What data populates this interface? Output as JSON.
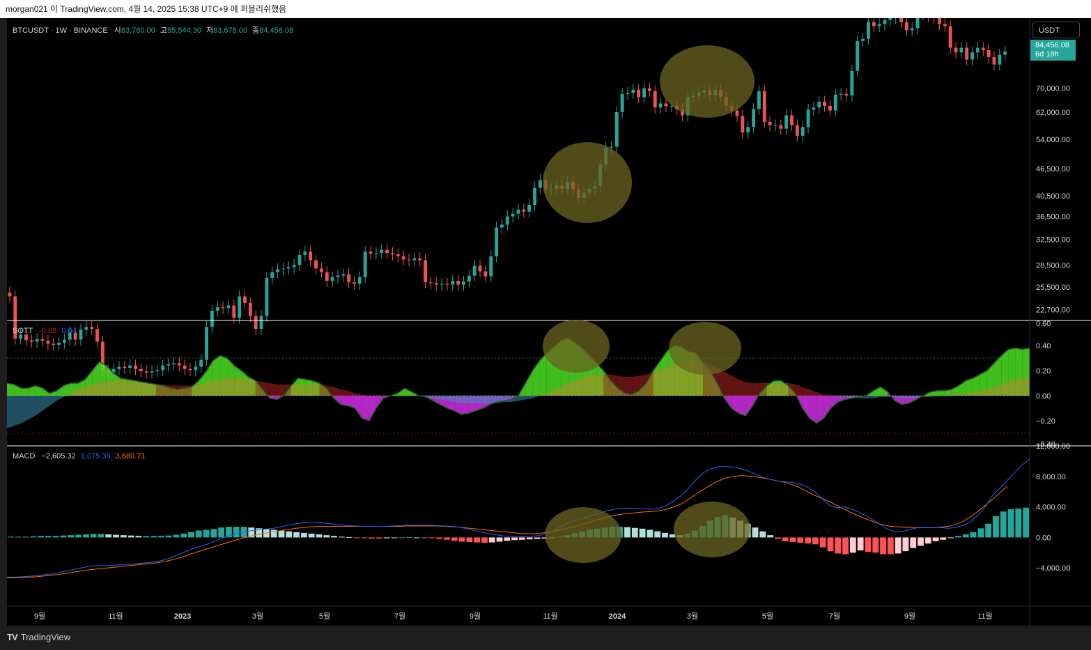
{
  "header": {
    "publish_info": "morgan021 이 TradingView.com, 4월 14, 2025 15:38 UTC+9 에 퍼블리쉬했음"
  },
  "footer": {
    "brand": "TradingView"
  },
  "price_pane": {
    "symbol": "BTCUSDT · 1W · BINANCE",
    "open_label": "시",
    "open": "83,760.00",
    "high_label": "고",
    "high": "85,544.30",
    "low_label": "저",
    "low": "83,678.00",
    "close_label": "종",
    "close": "84,456.08",
    "currency": "USDT",
    "last_price": "84,456.08",
    "countdown": "6d 18h"
  },
  "sott_legend": {
    "name": "SOTT",
    "v1": "-0.08",
    "v2": "0.04"
  },
  "macd_legend": {
    "name": "MACD",
    "hist": "−2,605.32",
    "macd": "1,075.39",
    "signal": "3,680.71"
  },
  "colors": {
    "up": "#26a69a",
    "down": "#ef5350",
    "background": "#000000",
    "macd_line": "#2962ff",
    "signal_line": "#ff6d00",
    "sott_up": "#4cde22",
    "sott_down": "#d22ee6",
    "highlight": "#6b6420"
  },
  "chart_data": [
    {
      "type": "candlestick",
      "title": "BTCUSDT · 1W · BINANCE",
      "y_scale": "log",
      "ylim": [
        21500,
        100000
      ],
      "y_ticks": [
        22700,
        25500,
        28500,
        32500,
        36500,
        40500,
        46500,
        54000,
        62000,
        70000
      ],
      "y_tick_labels": [
        "22,700.00",
        "25,500.00",
        "28,500.00",
        "32,500.00",
        "36,500.00",
        "40,500.00",
        "46,500.00",
        "54,000.00",
        "62,000.00",
        "70,000.00"
      ],
      "x_tick_labels": [
        "9월",
        "11월",
        "2023",
        "3월",
        "5월",
        "7월",
        "9월",
        "11월",
        "2024",
        "3월",
        "5월",
        "7월",
        "9월",
        "11월"
      ],
      "closes": [
        24300,
        19600,
        20000,
        19450,
        19300,
        19550,
        19400,
        19100,
        19000,
        19200,
        19500,
        20200,
        19500,
        20500,
        20800,
        20600,
        19300,
        16700,
        16500,
        16800,
        17000,
        16900,
        17100,
        16800,
        16600,
        16500,
        16600,
        16700,
        17100,
        17200,
        17300,
        17100,
        16800,
        16700,
        17000,
        17600,
        20800,
        22600,
        23000,
        22900,
        23200,
        21800,
        24300,
        23500,
        22000,
        20600,
        22000,
        26700,
        27500,
        27900,
        28000,
        28200,
        28500,
        30000,
        30500,
        29200,
        28000,
        27500,
        26300,
        26800,
        27000,
        27200,
        26100,
        25900,
        26800,
        30500,
        30200,
        30300,
        30800,
        30300,
        30100,
        29800,
        29300,
        29200,
        29500,
        29200,
        26100,
        26000,
        25800,
        25900,
        25800,
        26300,
        25800,
        26200,
        27000,
        28400,
        27600,
        26900,
        29800,
        34500,
        35000,
        36500,
        37000,
        37800,
        37400,
        38700,
        42200,
        43900,
        41900,
        42000,
        42700,
        42000,
        43500,
        41900,
        40100,
        41200,
        42000,
        42600,
        47500,
        51800,
        52000,
        62000,
        68000,
        68400,
        69500,
        66900,
        70000,
        69000,
        63500,
        64800,
        63900,
        64000,
        62900,
        61000,
        67000,
        67400,
        68500,
        69300,
        67700,
        69400,
        67000,
        64000,
        62500,
        60800,
        55900,
        57500,
        63000,
        69000,
        59000,
        58000,
        58000,
        57000,
        61000,
        58000,
        55000,
        57500,
        62800,
        63500,
        65400,
        64000,
        62500,
        67800,
        68000,
        67500,
        76500,
        89000,
        90000,
        98000,
        96000,
        97000,
        99000,
        100000,
        104000,
        98000,
        94000,
        95000,
        102000,
        105000,
        101000,
        100000,
        97000,
        96000,
        86000,
        84000,
        86000,
        81000,
        84000,
        86000,
        85000,
        82000,
        79000,
        83000,
        84400
      ],
      "note_visible_window": "approx. Aug 2022 – Nov 2024 weekly candles, later candles run off top of pane"
    },
    {
      "type": "area",
      "title": "SOTT",
      "ylim": [
        -0.4,
        0.6
      ],
      "y_ticks": [
        -0.2,
        0,
        0.2,
        0.4
      ],
      "y_tick_labels": [
        "−0.20",
        "0.00",
        "0.20",
        "0.40"
      ],
      "top_partial_label": "0.60",
      "bottom_partial_label": "−0.40",
      "ref_levels": [
        0.3,
        0,
        -0.3
      ],
      "sott": [
        0.1,
        0.09,
        0.06,
        0.06,
        0.08,
        0.06,
        0.02,
        0.04,
        0.08,
        0.1,
        0.1,
        0.13,
        0.2,
        0.27,
        0.24,
        0.18,
        0.14,
        0.13,
        0.12,
        0.11,
        0.1,
        0.09,
        0.08,
        0.06,
        0.05,
        0.06,
        0.07,
        0.12,
        0.19,
        0.28,
        0.32,
        0.3,
        0.24,
        0.2,
        0.15,
        0.12,
        0.05,
        -0.02,
        -0.03,
        0.0,
        0.08,
        0.14,
        0.13,
        0.12,
        0.1,
        0.06,
        -0.02,
        -0.07,
        -0.08,
        -0.1,
        -0.18,
        -0.2,
        -0.1,
        -0.02,
        0.0,
        0.02,
        0.06,
        0.03,
        0.0,
        -0.01,
        -0.04,
        -0.07,
        -0.1,
        -0.12,
        -0.15,
        -0.14,
        -0.12,
        -0.1,
        -0.07,
        -0.05,
        -0.04,
        -0.03,
        0.0,
        0.1,
        0.2,
        0.28,
        0.34,
        0.39,
        0.44,
        0.46,
        0.42,
        0.38,
        0.32,
        0.26,
        0.2,
        0.12,
        0.06,
        0.02,
        0.01,
        0.04,
        0.1,
        0.2,
        0.28,
        0.36,
        0.4,
        0.39,
        0.35,
        0.34,
        0.26,
        0.2,
        0.1,
        -0.02,
        -0.1,
        -0.14,
        -0.16,
        -0.08,
        0.02,
        0.08,
        0.12,
        0.12,
        0.08,
        0.02,
        -0.1,
        -0.18,
        -0.22,
        -0.18,
        -0.1,
        -0.05,
        -0.03,
        -0.02,
        -0.01,
        0.0,
        0.04,
        0.07,
        0.03,
        -0.04,
        -0.07,
        -0.06,
        -0.03,
        0.0,
        0.03,
        0.04,
        0.04,
        0.05,
        0.08,
        0.12,
        0.14,
        0.17,
        0.2,
        0.26,
        0.32,
        0.37,
        0.38,
        0.37,
        0.38
      ],
      "signal": [
        -0.26,
        -0.24,
        -0.22,
        -0.19,
        -0.16,
        -0.12,
        -0.08,
        -0.04,
        -0.01,
        0.02,
        0.05,
        0.07,
        0.09,
        0.1,
        0.11,
        0.12,
        0.12,
        0.12,
        0.12,
        0.11,
        0.1,
        0.09,
        0.09,
        0.08,
        0.08,
        0.08,
        0.08,
        0.09,
        0.1,
        0.12,
        0.13,
        0.14,
        0.14,
        0.14,
        0.13,
        0.12,
        0.11,
        0.1,
        0.09,
        0.09,
        0.09,
        0.09,
        0.09,
        0.09,
        0.09,
        0.08,
        0.07,
        0.05,
        0.04,
        0.02,
        0.01,
        0.0,
        0.0,
        0.0,
        0.0,
        0.0,
        0.0,
        0.0,
        0.0,
        -0.01,
        -0.02,
        -0.03,
        -0.04,
        -0.05,
        -0.06,
        -0.06,
        -0.06,
        -0.06,
        -0.06,
        -0.06,
        -0.05,
        -0.05,
        -0.04,
        -0.03,
        -0.02,
        0.0,
        0.02,
        0.04,
        0.07,
        0.1,
        0.12,
        0.14,
        0.16,
        0.17,
        0.17,
        0.17,
        0.16,
        0.15,
        0.15,
        0.16,
        0.17,
        0.19,
        0.21,
        0.23,
        0.26,
        0.27,
        0.28,
        0.28,
        0.27,
        0.25,
        0.22,
        0.19,
        0.16,
        0.13,
        0.11,
        0.1,
        0.1,
        0.1,
        0.1,
        0.1,
        0.1,
        0.09,
        0.07,
        0.05,
        0.03,
        0.01,
        0.0,
        -0.01,
        -0.01,
        -0.02,
        -0.02,
        -0.02,
        -0.02,
        -0.01,
        -0.01,
        -0.01,
        -0.02,
        -0.02,
        -0.02,
        -0.01,
        -0.01,
        0.0,
        0.0,
        0.01,
        0.01,
        0.02,
        0.03,
        0.04,
        0.05,
        0.07,
        0.09,
        0.11,
        0.13,
        0.14,
        0.15
      ]
    },
    {
      "type": "line+histogram",
      "title": "MACD",
      "ylim": [
        -9000,
        12000
      ],
      "y_ticks": [
        -4000,
        0,
        4000,
        8000,
        12000
      ],
      "y_tick_labels": [
        "−4,000.00",
        "0.00",
        "4,000.00",
        "8,000.00",
        "12,000.00"
      ],
      "series_names": [
        "MACD",
        "Signal",
        "Histogram"
      ],
      "macd": [
        -5200,
        -5200,
        -5150,
        -5100,
        -5000,
        -4900,
        -4800,
        -4600,
        -4400,
        -4200,
        -4000,
        -3800,
        -3700,
        -3700,
        -3650,
        -3600,
        -3550,
        -3500,
        -3400,
        -3300,
        -3200,
        -3000,
        -2700,
        -2300,
        -1900,
        -1500,
        -1200,
        -900,
        -500,
        -100,
        200,
        500,
        700,
        900,
        1000,
        1100,
        1200,
        1400,
        1600,
        1800,
        1900,
        2000,
        1950,
        1850,
        1750,
        1650,
        1550,
        1500,
        1450,
        1450,
        1450,
        1450,
        1500,
        1550,
        1600,
        1600,
        1600,
        1600,
        1550,
        1500,
        1450,
        1350,
        1150,
        900,
        700,
        500,
        350,
        200,
        150,
        100,
        100,
        150,
        300,
        600,
        1000,
        1600,
        2000,
        2300,
        2600,
        2900,
        3200,
        3500,
        3700,
        3800,
        3850,
        3800,
        3750,
        3700,
        3800,
        4200,
        4800,
        5500,
        6500,
        7600,
        8500,
        9000,
        9300,
        9300,
        9200,
        9000,
        8700,
        8300,
        7900,
        7600,
        7400,
        7300,
        7200,
        7000,
        6600,
        6000,
        5100,
        4200,
        3900,
        4000,
        3700,
        3300,
        2800,
        2200,
        1600,
        1000,
        700,
        800,
        1100,
        1300,
        1300,
        1300,
        1300,
        1200,
        1300,
        1600,
        2000,
        2900,
        4000,
        5500,
        6500,
        7500,
        8500,
        9500,
        10300
      ],
      "signal": [
        -5300,
        -5300,
        -5250,
        -5200,
        -5150,
        -5050,
        -4950,
        -4850,
        -4700,
        -4550,
        -4400,
        -4250,
        -4150,
        -4050,
        -3950,
        -3850,
        -3750,
        -3650,
        -3550,
        -3450,
        -3350,
        -3200,
        -3000,
        -2750,
        -2450,
        -2100,
        -1800,
        -1500,
        -1200,
        -900,
        -600,
        -300,
        -50,
        200,
        400,
        600,
        750,
        900,
        1050,
        1200,
        1300,
        1400,
        1450,
        1450,
        1450,
        1450,
        1450,
        1450,
        1450,
        1450,
        1450,
        1450,
        1450,
        1450,
        1500,
        1500,
        1500,
        1500,
        1500,
        1450,
        1400,
        1350,
        1250,
        1150,
        1050,
        950,
        850,
        750,
        650,
        550,
        500,
        500,
        550,
        700,
        850,
        1050,
        1300,
        1550,
        1800,
        2100,
        2400,
        2700,
        2900,
        3050,
        3150,
        3250,
        3350,
        3400,
        3500,
        3700,
        4000,
        4400,
        5000,
        5700,
        6300,
        6900,
        7400,
        7800,
        8000,
        8100,
        8050,
        7950,
        7800,
        7600,
        7400,
        7200,
        6900,
        6500,
        6000,
        5500,
        5100,
        4700,
        4200,
        3700,
        3200,
        2800,
        2400,
        2000,
        1700,
        1500,
        1400,
        1350,
        1300,
        1300,
        1300,
        1300,
        1350,
        1450,
        1700,
        2100,
        2700,
        3400,
        4200,
        5000,
        5900,
        6700
      ],
      "histogram": [
        100,
        100,
        100,
        150,
        200,
        200,
        200,
        250,
        300,
        350,
        400,
        450,
        450,
        400,
        350,
        300,
        250,
        200,
        200,
        200,
        200,
        250,
        350,
        500,
        700,
        900,
        1000,
        1100,
        1300,
        1400,
        1400,
        1400,
        1300,
        1200,
        1100,
        1000,
        900,
        800,
        700,
        600,
        500,
        400,
        300,
        200,
        100,
        50,
        -50,
        -100,
        -150,
        -150,
        -100,
        -50,
        0,
        50,
        0,
        -50,
        -100,
        -200,
        -300,
        -450,
        -550,
        -600,
        -650,
        -700,
        -650,
        -550,
        -450,
        -350,
        -300,
        -250,
        -200,
        -150,
        -50,
        100,
        300,
        550,
        800,
        1000,
        1150,
        1300,
        1400,
        1400,
        1350,
        1250,
        1150,
        1000,
        800,
        600,
        400,
        300,
        500,
        900,
        1500,
        2200,
        2700,
        2900,
        2600,
        2200,
        1800,
        1300,
        800,
        300,
        -200,
        -500,
        -600,
        -700,
        -800,
        -900,
        -1300,
        -1800,
        -2100,
        -2200,
        -2000,
        -1700,
        -1900,
        -2000,
        -2200,
        -2200,
        -2100,
        -1800,
        -1400,
        -1100,
        -800,
        -500,
        -300,
        -100,
        200,
        400,
        700,
        1200,
        1800,
        2800,
        3400,
        3700,
        3800,
        3900
      ]
    }
  ]
}
